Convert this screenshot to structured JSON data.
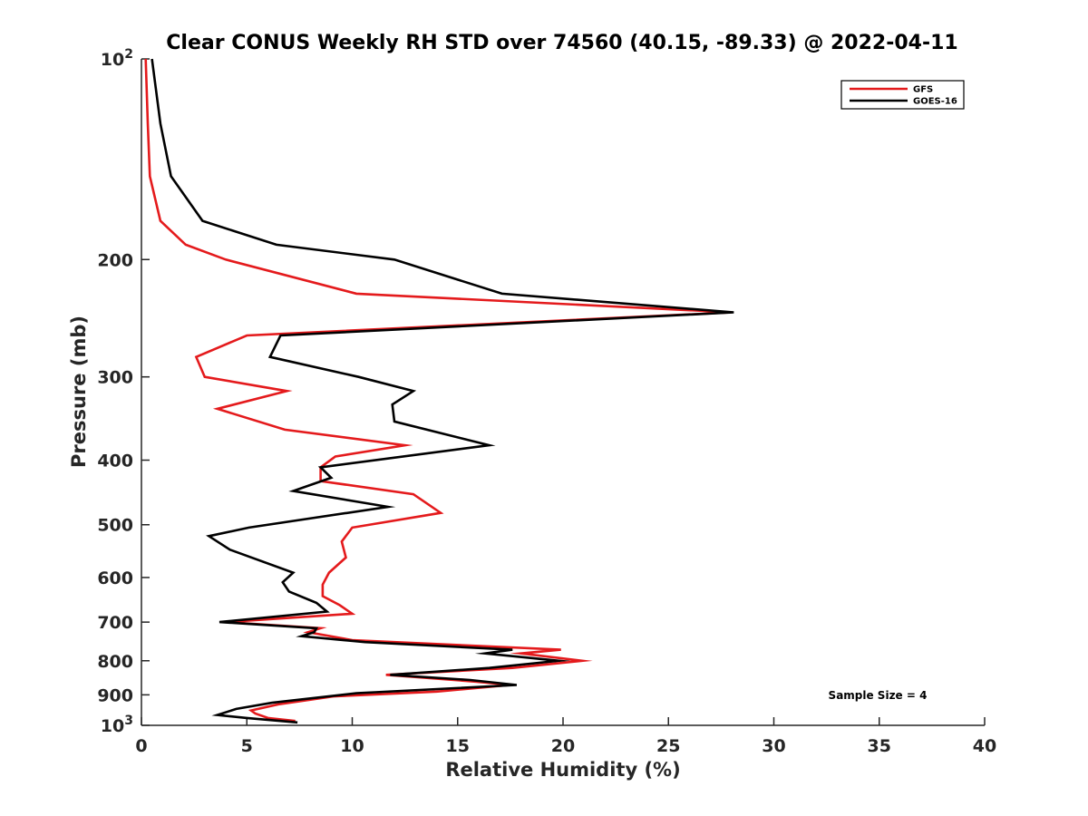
{
  "chart_data": {
    "type": "line",
    "title": "Clear CONUS Weekly RH STD over 74560 (40.15, -89.33) @ 2022-04-11",
    "xlabel": "Relative Humidity (%)",
    "ylabel": "Pressure (mb)",
    "xlim": [
      0,
      40
    ],
    "ylim": [
      100,
      1000
    ],
    "yscale": "log",
    "y_reversed": true,
    "grid": false,
    "legend_position": "top-right",
    "x_ticks": [
      0,
      5,
      10,
      15,
      20,
      25,
      30,
      35,
      40
    ],
    "x_tick_labels": [
      "0",
      "5",
      "10",
      "15",
      "20",
      "25",
      "30",
      "35",
      "40"
    ],
    "y_ticks": [
      100,
      200,
      300,
      400,
      500,
      600,
      700,
      800,
      900,
      1000
    ],
    "y_tick_labels": [
      "10^2",
      "200",
      "300",
      "400",
      "500",
      "600",
      "700",
      "800",
      "900",
      "10^3"
    ],
    "annotation": "Sample Size = 4",
    "series": [
      {
        "name": "GFS",
        "color": "#e41a1c",
        "points": [
          [
            0.2,
            100
          ],
          [
            0.3,
            125
          ],
          [
            0.4,
            150
          ],
          [
            0.9,
            175
          ],
          [
            2.1,
            190
          ],
          [
            4.0,
            200
          ],
          [
            10.2,
            225
          ],
          [
            28.0,
            240
          ],
          [
            5.0,
            260
          ],
          [
            2.6,
            280
          ],
          [
            3.0,
            300
          ],
          [
            6.9,
            315
          ],
          [
            3.6,
            335
          ],
          [
            6.8,
            360
          ],
          [
            12.5,
            380
          ],
          [
            9.2,
            395
          ],
          [
            8.5,
            410
          ],
          [
            8.5,
            430
          ],
          [
            12.9,
            450
          ],
          [
            14.2,
            480
          ],
          [
            10.0,
            505
          ],
          [
            9.5,
            530
          ],
          [
            9.7,
            560
          ],
          [
            8.9,
            590
          ],
          [
            8.6,
            615
          ],
          [
            8.6,
            640
          ],
          [
            9.4,
            660
          ],
          [
            10.0,
            680
          ],
          [
            4.0,
            700
          ],
          [
            8.5,
            715
          ],
          [
            7.9,
            725
          ],
          [
            10.0,
            745
          ],
          [
            19.9,
            770
          ],
          [
            18.0,
            780
          ],
          [
            20.9,
            800
          ],
          [
            17.6,
            820
          ],
          [
            11.6,
            840
          ],
          [
            15.9,
            860
          ],
          [
            17.5,
            870
          ],
          [
            14.0,
            890
          ],
          [
            9.1,
            905
          ],
          [
            6.5,
            930
          ],
          [
            5.2,
            950
          ],
          [
            5.4,
            960
          ],
          [
            6.0,
            975
          ],
          [
            7.3,
            985
          ]
        ]
      },
      {
        "name": "GOES-16",
        "color": "#000000",
        "points": [
          [
            0.5,
            100
          ],
          [
            0.9,
            125
          ],
          [
            1.4,
            150
          ],
          [
            2.9,
            175
          ],
          [
            6.4,
            190
          ],
          [
            12.0,
            200
          ],
          [
            17.1,
            225
          ],
          [
            28.1,
            240
          ],
          [
            6.6,
            260
          ],
          [
            6.1,
            280
          ],
          [
            10.3,
            300
          ],
          [
            12.9,
            315
          ],
          [
            11.9,
            330
          ],
          [
            12.0,
            350
          ],
          [
            16.5,
            380
          ],
          [
            8.5,
            410
          ],
          [
            9.0,
            425
          ],
          [
            7.2,
            445
          ],
          [
            11.7,
            470
          ],
          [
            5.1,
            505
          ],
          [
            3.2,
            520
          ],
          [
            4.2,
            545
          ],
          [
            7.2,
            590
          ],
          [
            6.7,
            610
          ],
          [
            7.0,
            630
          ],
          [
            8.3,
            655
          ],
          [
            8.8,
            675
          ],
          [
            3.7,
            700
          ],
          [
            8.3,
            715
          ],
          [
            8.2,
            725
          ],
          [
            7.6,
            735
          ],
          [
            10.6,
            750
          ],
          [
            17.6,
            770
          ],
          [
            16.3,
            780
          ],
          [
            19.8,
            800
          ],
          [
            16.5,
            820
          ],
          [
            11.8,
            840
          ],
          [
            15.6,
            855
          ],
          [
            17.8,
            870
          ],
          [
            10.2,
            895
          ],
          [
            6.2,
            925
          ],
          [
            4.5,
            945
          ],
          [
            3.6,
            965
          ],
          [
            5.0,
            975
          ],
          [
            7.4,
            990
          ]
        ]
      }
    ]
  }
}
